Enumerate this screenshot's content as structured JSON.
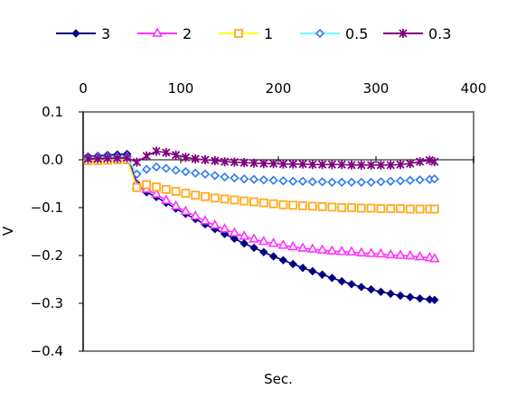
{
  "chart_data": {
    "type": "line",
    "xlabel": "Sec.",
    "ylabel": "V",
    "xlim": [
      0,
      400
    ],
    "ylim": [
      -0.4,
      0.1
    ],
    "x_ticks": [
      {
        "value": 0,
        "label": "0"
      },
      {
        "value": 100,
        "label": "100"
      },
      {
        "value": 200,
        "label": "200"
      },
      {
        "value": 300,
        "label": "300"
      },
      {
        "value": 400,
        "label": "400"
      }
    ],
    "y_ticks": [
      {
        "value": 0.1,
        "label": "0.1"
      },
      {
        "value": 0.0,
        "label": "0.0"
      },
      {
        "value": -0.1,
        "label": "−0.1"
      },
      {
        "value": -0.2,
        "label": "−0.2"
      },
      {
        "value": -0.3,
        "label": "−0.3"
      },
      {
        "value": -0.4,
        "label": "−0.4"
      }
    ],
    "x_axis_position": "top",
    "grid": false,
    "legend_position": "top",
    "series": [
      {
        "name": "3",
        "color": "#000080",
        "marker": "diamond",
        "x": [
          5,
          15,
          25,
          35,
          45,
          55,
          65,
          75,
          85,
          95,
          105,
          115,
          125,
          135,
          145,
          155,
          165,
          175,
          185,
          195,
          205,
          215,
          225,
          235,
          245,
          255,
          265,
          275,
          285,
          295,
          305,
          315,
          325,
          335,
          345,
          355,
          360
        ],
        "values": [
          0.007,
          0.008,
          0.01,
          0.011,
          0.012,
          -0.05,
          -0.068,
          -0.078,
          -0.09,
          -0.102,
          -0.113,
          -0.124,
          -0.135,
          -0.145,
          -0.155,
          -0.165,
          -0.175,
          -0.184,
          -0.193,
          -0.202,
          -0.21,
          -0.218,
          -0.226,
          -0.233,
          -0.24,
          -0.247,
          -0.254,
          -0.26,
          -0.266,
          -0.271,
          -0.276,
          -0.28,
          -0.284,
          -0.287,
          -0.29,
          -0.292,
          -0.293
        ]
      },
      {
        "name": "2",
        "color": "#FF33FF",
        "marker": "triangle",
        "x": [
          5,
          15,
          25,
          35,
          45,
          55,
          65,
          75,
          85,
          95,
          105,
          115,
          125,
          135,
          145,
          155,
          165,
          175,
          185,
          195,
          205,
          215,
          225,
          235,
          245,
          255,
          265,
          275,
          285,
          295,
          305,
          315,
          325,
          335,
          345,
          355,
          360
        ],
        "values": [
          0.003,
          0.004,
          0.005,
          0.005,
          0.006,
          -0.055,
          -0.062,
          -0.072,
          -0.085,
          -0.097,
          -0.108,
          -0.118,
          -0.128,
          -0.137,
          -0.145,
          -0.153,
          -0.16,
          -0.166,
          -0.171,
          -0.175,
          -0.179,
          -0.182,
          -0.185,
          -0.187,
          -0.189,
          -0.191,
          -0.192,
          -0.193,
          -0.195,
          -0.196,
          -0.197,
          -0.199,
          -0.2,
          -0.201,
          -0.203,
          -0.205,
          -0.207
        ]
      },
      {
        "name": "1",
        "color": "#FFAA22",
        "line_color": "#FFFF00",
        "marker": "square",
        "x": [
          5,
          15,
          25,
          35,
          45,
          55,
          65,
          75,
          85,
          95,
          105,
          115,
          125,
          135,
          145,
          155,
          165,
          175,
          185,
          195,
          205,
          215,
          225,
          235,
          245,
          255,
          265,
          275,
          285,
          295,
          305,
          315,
          325,
          335,
          345,
          355,
          360
        ],
        "values": [
          -0.002,
          -0.002,
          -0.001,
          0.0,
          0.0,
          -0.058,
          -0.052,
          -0.057,
          -0.062,
          -0.066,
          -0.07,
          -0.074,
          -0.077,
          -0.08,
          -0.082,
          -0.084,
          -0.086,
          -0.088,
          -0.09,
          -0.092,
          -0.094,
          -0.095,
          -0.096,
          -0.097,
          -0.098,
          -0.099,
          -0.1,
          -0.1,
          -0.101,
          -0.101,
          -0.102,
          -0.102,
          -0.102,
          -0.103,
          -0.103,
          -0.103,
          -0.103
        ]
      },
      {
        "name": "0.5",
        "color": "#3377EE",
        "line_color": "#66FFFF",
        "marker": "diamond-open",
        "x": [
          5,
          15,
          25,
          35,
          45,
          55,
          65,
          75,
          85,
          95,
          105,
          115,
          125,
          135,
          145,
          155,
          165,
          175,
          185,
          195,
          205,
          215,
          225,
          235,
          245,
          255,
          265,
          275,
          285,
          295,
          305,
          315,
          325,
          335,
          345,
          355,
          360
        ],
        "values": [
          0.004,
          0.005,
          0.006,
          0.006,
          0.006,
          -0.03,
          -0.02,
          -0.015,
          -0.018,
          -0.022,
          -0.025,
          -0.028,
          -0.03,
          -0.033,
          -0.036,
          -0.038,
          -0.04,
          -0.041,
          -0.042,
          -0.043,
          -0.044,
          -0.045,
          -0.045,
          -0.046,
          -0.046,
          -0.047,
          -0.047,
          -0.047,
          -0.047,
          -0.047,
          -0.046,
          -0.045,
          -0.044,
          -0.043,
          -0.042,
          -0.041,
          -0.04
        ]
      },
      {
        "name": "0.3",
        "color": "#800080",
        "marker": "star",
        "x": [
          5,
          15,
          25,
          35,
          45,
          55,
          65,
          75,
          85,
          95,
          105,
          115,
          125,
          135,
          145,
          155,
          165,
          175,
          185,
          195,
          205,
          215,
          225,
          235,
          245,
          255,
          265,
          275,
          285,
          295,
          305,
          315,
          325,
          335,
          345,
          355,
          360
        ],
        "values": [
          0.002,
          0.002,
          0.003,
          0.003,
          0.004,
          -0.005,
          0.008,
          0.018,
          0.015,
          0.01,
          0.005,
          0.002,
          0.0,
          -0.002,
          -0.004,
          -0.005,
          -0.006,
          -0.007,
          -0.008,
          -0.008,
          -0.009,
          -0.009,
          -0.009,
          -0.01,
          -0.01,
          -0.01,
          -0.01,
          -0.011,
          -0.011,
          -0.011,
          -0.011,
          -0.011,
          -0.01,
          -0.008,
          -0.004,
          -0.001,
          -0.004
        ]
      }
    ]
  }
}
